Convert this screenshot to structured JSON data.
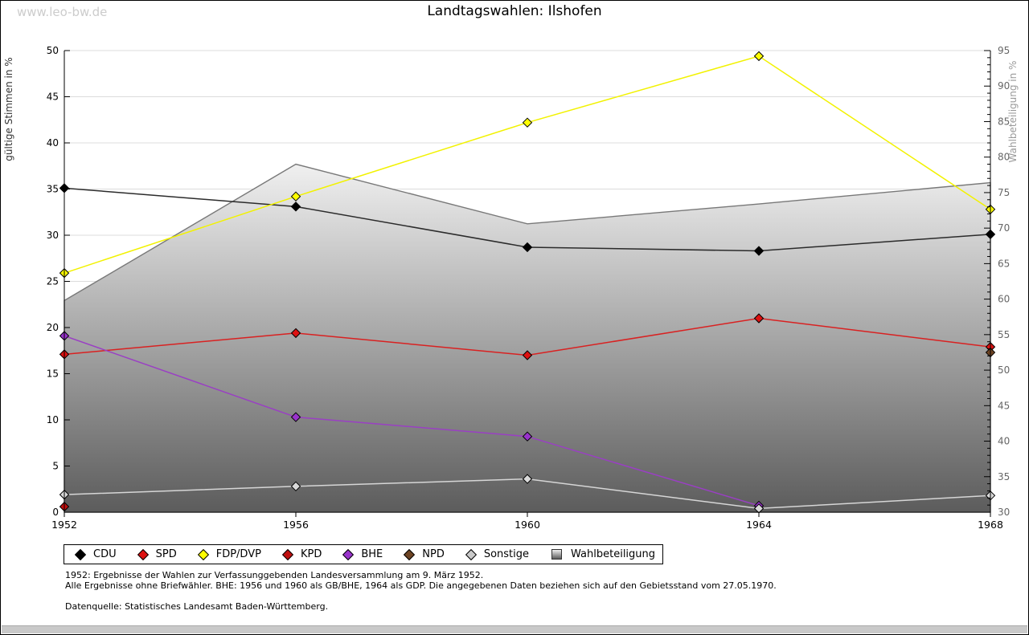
{
  "watermark": "www.leo-bw.de",
  "title": "Landtagswahlen: Ilshofen",
  "left_axis": {
    "title": "gültige Stimmen in %",
    "min": 0,
    "max": 50,
    "tick_step": 5
  },
  "right_axis": {
    "title": "Wahlbeteiligung in %",
    "min": 30,
    "max": 95,
    "tick_step": 5,
    "minor_step": 1
  },
  "x_axis": {
    "tick_labels": [
      "1952",
      "1956",
      "1960",
      "1964",
      "1968"
    ]
  },
  "chart_data": {
    "type": "line",
    "x": [
      1952,
      1956,
      1960,
      1964,
      1968
    ],
    "title": "Landtagswahlen: Ilshofen",
    "xlabel": "",
    "ylabel_left": "gültige Stimmen in %",
    "ylabel_right": "Wahlbeteiligung in %",
    "ylim_left": [
      0,
      50
    ],
    "ylim_right": [
      30,
      95
    ],
    "grid": "horizontal",
    "legend_position": "bottom",
    "series": [
      {
        "name": "CDU",
        "axis": "left",
        "marker": "diamond",
        "color": "#000000",
        "line_color": "#2b2b2b",
        "values": [
          35.1,
          33.1,
          28.7,
          28.3,
          30.1
        ]
      },
      {
        "name": "SPD",
        "axis": "left",
        "marker": "diamond",
        "color": "#dd1111",
        "line_color": "#d92121",
        "values": [
          17.1,
          19.4,
          17.0,
          21.0,
          17.9
        ]
      },
      {
        "name": "FDP/DVP",
        "axis": "left",
        "marker": "diamond",
        "color": "#ffff00",
        "line_color": "#f2f200",
        "values": [
          25.9,
          34.2,
          42.2,
          49.4,
          32.8
        ]
      },
      {
        "name": "KPD",
        "axis": "left",
        "marker": "diamond",
        "color": "#c00f0f",
        "line_color": "#c00f0f",
        "values": [
          0.6,
          null,
          null,
          null,
          null
        ]
      },
      {
        "name": "BHE",
        "axis": "left",
        "marker": "diamond",
        "color": "#9933cc",
        "line_color": "#9a3fc4",
        "values": [
          19.1,
          10.3,
          8.2,
          0.7,
          null
        ]
      },
      {
        "name": "NPD",
        "axis": "left",
        "marker": "diamond",
        "color": "#6e4423",
        "line_color": "#6e4423",
        "values": [
          null,
          null,
          null,
          null,
          17.3
        ]
      },
      {
        "name": "Sonstige",
        "axis": "left",
        "marker": "diamond",
        "color": "#d9d9d9",
        "line_color": "#d6d6d6",
        "values": [
          1.9,
          2.8,
          3.6,
          0.4,
          1.8
        ]
      },
      {
        "name": "Wahlbeteiligung",
        "axis": "right",
        "type": "area",
        "border_color": "#787878",
        "fill_top": "#f0f0f0",
        "fill_bottom": "#5c5c5c",
        "values": [
          59.8,
          79.0,
          70.6,
          73.4,
          76.4
        ]
      }
    ]
  },
  "legend": [
    {
      "label": "CDU",
      "shape": "diamond",
      "color": "#000000"
    },
    {
      "label": "SPD",
      "shape": "diamond",
      "color": "#dd1111"
    },
    {
      "label": "FDP/DVP",
      "shape": "diamond",
      "color": "#ffff00"
    },
    {
      "label": "KPD",
      "shape": "diamond",
      "color": "#c00f0f"
    },
    {
      "label": "BHE",
      "shape": "diamond",
      "color": "#9933cc"
    },
    {
      "label": "NPD",
      "shape": "diamond",
      "color": "#6e4423"
    },
    {
      "label": "Sonstige",
      "shape": "diamond",
      "color": "#c9c9c9"
    },
    {
      "label": "Wahlbeteiligung",
      "shape": "square",
      "color": "#bbbbbb"
    }
  ],
  "footnotes": [
    "1952: Ergebnisse der Wahlen zur Verfassunggebenden Landesversammlung am 9. März 1952.",
    "Alle Ergebnisse ohne Briefwähler. BHE: 1956 und 1960 als GB/BHE, 1964 als GDP. Die angegebenen Daten beziehen sich auf den Gebietsstand vom 27.05.1970.",
    "Datenquelle: Statistisches Landesamt Baden-Württemberg."
  ]
}
